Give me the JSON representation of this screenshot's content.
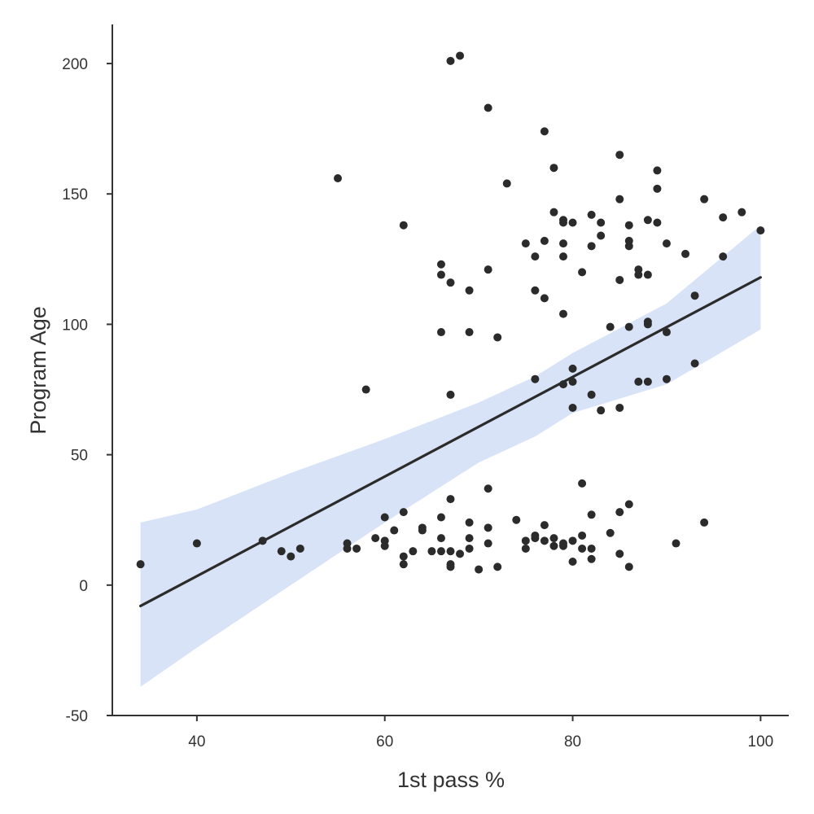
{
  "chart_data": {
    "type": "scatter",
    "xlabel": "1st pass %",
    "ylabel": "Program Age",
    "xlim": [
      31,
      103
    ],
    "ylim": [
      -50,
      215
    ],
    "xticks": [
      40,
      60,
      80,
      100
    ],
    "yticks": [
      -50,
      0,
      50,
      100,
      150,
      200
    ],
    "grid": false,
    "colors": {
      "points": "#2b2b2b",
      "line": "#2b2b2b",
      "band": "#cfdcf5",
      "axis": "#333333"
    },
    "points": [
      [
        34,
        8
      ],
      [
        40,
        16
      ],
      [
        47,
        17
      ],
      [
        49,
        13
      ],
      [
        50,
        11
      ],
      [
        51,
        14
      ],
      [
        55,
        156
      ],
      [
        56,
        16
      ],
      [
        56,
        14
      ],
      [
        57,
        14
      ],
      [
        58,
        75
      ],
      [
        59,
        18
      ],
      [
        60,
        26
      ],
      [
        60,
        17
      ],
      [
        60,
        15
      ],
      [
        61,
        21
      ],
      [
        62,
        138
      ],
      [
        62,
        28
      ],
      [
        62,
        11
      ],
      [
        62,
        8
      ],
      [
        63,
        13
      ],
      [
        64,
        22
      ],
      [
        64,
        21
      ],
      [
        65,
        13
      ],
      [
        66,
        123
      ],
      [
        66,
        119
      ],
      [
        66,
        97
      ],
      [
        66,
        26
      ],
      [
        66,
        18
      ],
      [
        66,
        13
      ],
      [
        67,
        201
      ],
      [
        67,
        116
      ],
      [
        67,
        73
      ],
      [
        67,
        33
      ],
      [
        67,
        13
      ],
      [
        67,
        8
      ],
      [
        67,
        7
      ],
      [
        68,
        203
      ],
      [
        68,
        12
      ],
      [
        69,
        113
      ],
      [
        69,
        97
      ],
      [
        69,
        24
      ],
      [
        69,
        18
      ],
      [
        69,
        14
      ],
      [
        70,
        6
      ],
      [
        71,
        183
      ],
      [
        71,
        121
      ],
      [
        71,
        37
      ],
      [
        71,
        22
      ],
      [
        71,
        16
      ],
      [
        72,
        95
      ],
      [
        72,
        7
      ],
      [
        73,
        154
      ],
      [
        74,
        25
      ],
      [
        75,
        131
      ],
      [
        75,
        17
      ],
      [
        75,
        14
      ],
      [
        76,
        126
      ],
      [
        76,
        113
      ],
      [
        76,
        79
      ],
      [
        76,
        19
      ],
      [
        76,
        18
      ],
      [
        77,
        174
      ],
      [
        77,
        132
      ],
      [
        77,
        110
      ],
      [
        77,
        23
      ],
      [
        77,
        17
      ],
      [
        78,
        160
      ],
      [
        78,
        143
      ],
      [
        78,
        18
      ],
      [
        78,
        15
      ],
      [
        79,
        140
      ],
      [
        79,
        139
      ],
      [
        79,
        131
      ],
      [
        79,
        126
      ],
      [
        79,
        104
      ],
      [
        79,
        77
      ],
      [
        79,
        16
      ],
      [
        79,
        15
      ],
      [
        80,
        139
      ],
      [
        80,
        83
      ],
      [
        80,
        78
      ],
      [
        80,
        68
      ],
      [
        80,
        17
      ],
      [
        80,
        9
      ],
      [
        81,
        120
      ],
      [
        81,
        39
      ],
      [
        81,
        19
      ],
      [
        81,
        14
      ],
      [
        82,
        142
      ],
      [
        82,
        130
      ],
      [
        82,
        73
      ],
      [
        82,
        27
      ],
      [
        82,
        14
      ],
      [
        82,
        10
      ],
      [
        83,
        139
      ],
      [
        83,
        134
      ],
      [
        83,
        67
      ],
      [
        84,
        99
      ],
      [
        84,
        20
      ],
      [
        85,
        165
      ],
      [
        85,
        148
      ],
      [
        85,
        117
      ],
      [
        85,
        68
      ],
      [
        85,
        28
      ],
      [
        85,
        12
      ],
      [
        86,
        138
      ],
      [
        86,
        132
      ],
      [
        86,
        130
      ],
      [
        86,
        99
      ],
      [
        86,
        31
      ],
      [
        86,
        7
      ],
      [
        87,
        121
      ],
      [
        87,
        119
      ],
      [
        87,
        78
      ],
      [
        88,
        140
      ],
      [
        88,
        119
      ],
      [
        88,
        101
      ],
      [
        88,
        100
      ],
      [
        88,
        78
      ],
      [
        89,
        159
      ],
      [
        89,
        152
      ],
      [
        89,
        139
      ],
      [
        90,
        131
      ],
      [
        90,
        97
      ],
      [
        90,
        79
      ],
      [
        91,
        16
      ],
      [
        92,
        127
      ],
      [
        93,
        111
      ],
      [
        93,
        85
      ],
      [
        94,
        148
      ],
      [
        94,
        24
      ],
      [
        96,
        141
      ],
      [
        96,
        126
      ],
      [
        98,
        143
      ],
      [
        100,
        136
      ]
    ],
    "regression": {
      "x": [
        34,
        100
      ],
      "fit": [
        -8,
        118
      ],
      "band_x": [
        34,
        40,
        50,
        60,
        70,
        76,
        80,
        90,
        100
      ],
      "band_lower": [
        -39,
        -24,
        0,
        24,
        47,
        57,
        66,
        77,
        98
      ],
      "band_upper": [
        24,
        29,
        43,
        56,
        70,
        80,
        89,
        108,
        138
      ]
    }
  }
}
